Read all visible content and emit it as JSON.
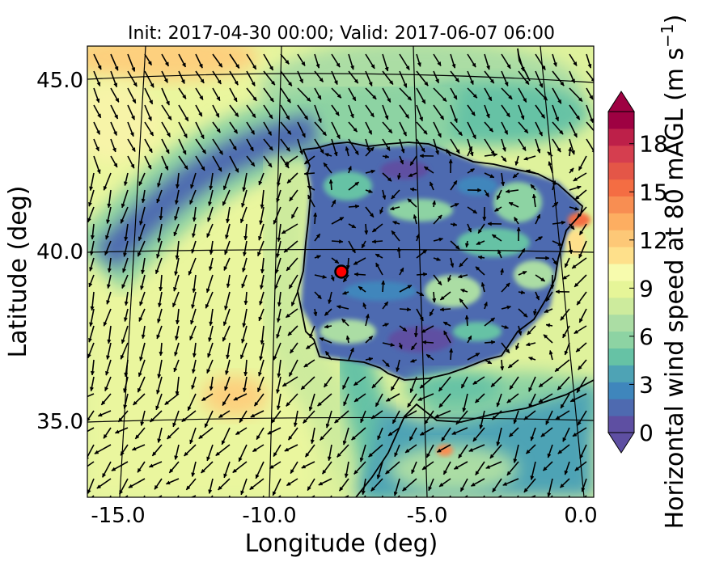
{
  "title": "Init: 2017-04-30 00:00; Valid: 2017-06-07 06:00",
  "xlabel": "Longitude (deg)",
  "ylabel": "Latitude (deg)",
  "x_ticks": [
    "-15.0",
    "-10.0",
    "-5.0",
    "0.0"
  ],
  "y_ticks": [
    "45.0",
    "40.0",
    "35.0"
  ],
  "colorbar": {
    "label": "Horizontal wind speed at 80 mAGL (m s",
    "label_sup": "−1",
    "label_end": ")",
    "ticks": [
      "0",
      "3",
      "6",
      "9",
      "12",
      "15",
      "18"
    ],
    "vmin": 0,
    "vmax": 20,
    "extend": "both",
    "colors": [
      "#5e4fa2",
      "#4e6ab0",
      "#3f86bc",
      "#4ea3b5",
      "#66c2a5",
      "#8dd3a3",
      "#abdda4",
      "#cdeb9d",
      "#e6f598",
      "#f7fbad",
      "#fee08b",
      "#fdc877",
      "#fdae61",
      "#f88e52",
      "#f46d43",
      "#e45647",
      "#d53e4f",
      "#bd2049",
      "#9e0142"
    ]
  },
  "map": {
    "lon_range": [
      -16,
      0.3
    ],
    "lat_range": [
      32.5,
      46
    ],
    "marker": {
      "lon": -7.7,
      "lat": 39.4,
      "color": "#ff0000"
    }
  }
}
